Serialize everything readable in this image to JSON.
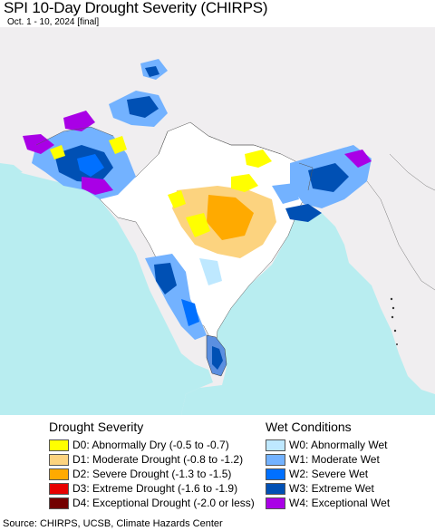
{
  "header": {
    "title": "SPI 10-Day Drought Severity (CHIRPS)",
    "subtitle": "Oct. 1 - 10, 2024 [final]"
  },
  "map": {
    "region": "South Asia",
    "land_color": "#f0eef0",
    "water_color": "#b5ecf0",
    "ocean_color": "#b8edf0"
  },
  "legend": {
    "drought": {
      "heading": "Drought Severity",
      "items": [
        {
          "label": "D0: Abnormally Dry (-0.5 to -0.7)",
          "color": "#ffff00"
        },
        {
          "label": "D1: Moderate Drought (-0.8 to -1.2)",
          "color": "#fcd37f"
        },
        {
          "label": "D2: Severe Drought (-1.3 to -1.5)",
          "color": "#ffaa00"
        },
        {
          "label": "D3: Extreme Drought (-1.6 to -1.9)",
          "color": "#e60000"
        },
        {
          "label": "D4: Exceptional Drought (-2.0 or less)",
          "color": "#730000"
        }
      ]
    },
    "wet": {
      "heading": "Wet Conditions",
      "items": [
        {
          "label": "W0: Abnormally Wet",
          "color": "#bee8ff"
        },
        {
          "label": "W1: Moderate Wet",
          "color": "#73b2ff"
        },
        {
          "label": "W2: Severe Wet",
          "color": "#0070ff"
        },
        {
          "label": "W3: Extreme Wet",
          "color": "#0050b4"
        },
        {
          "label": "W4: Exceptional Wet",
          "color": "#a900e6"
        }
      ]
    }
  },
  "footer": {
    "source": "Source: CHIRPS, UCSB, Climate Hazards Center"
  }
}
